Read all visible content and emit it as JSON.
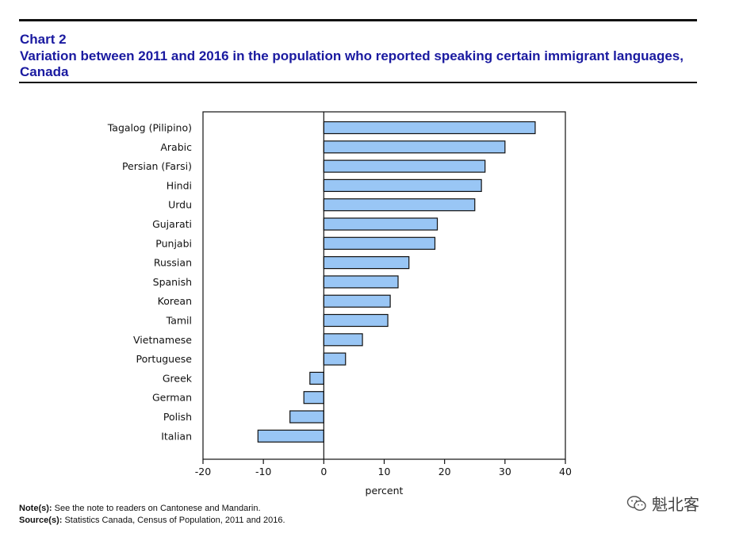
{
  "header": {
    "chart_number": "Chart 2",
    "title": "Variation between 2011 and 2016 in the population who reported speaking certain immigrant languages, Canada"
  },
  "chart_data": {
    "type": "bar",
    "orientation": "horizontal",
    "categories": [
      "Tagalog (Pilipino)",
      "Arabic",
      "Persian (Farsi)",
      "Hindi",
      "Urdu",
      "Gujarati",
      "Punjabi",
      "Russian",
      "Spanish",
      "Korean",
      "Tamil",
      "Vietnamese",
      "Portuguese",
      "Greek",
      "German",
      "Polish",
      "Italian"
    ],
    "values": [
      35.0,
      30.0,
      26.7,
      26.1,
      25.0,
      18.8,
      18.4,
      14.1,
      12.3,
      11.0,
      10.6,
      6.4,
      3.6,
      -2.3,
      -3.3,
      -5.6,
      -10.9
    ],
    "xlim": [
      -20,
      40
    ],
    "xticks": [
      -20,
      -10,
      0,
      10,
      20,
      30,
      40
    ],
    "xlabel": "percent",
    "ylabel": "",
    "bar_color": "#99c6f5",
    "bar_edge_color": "#111111"
  },
  "footer": {
    "note_label": "Note(s):",
    "note_text": "See the note to readers on Cantonese and Mandarin.",
    "source_label": "Source(s):",
    "source_text": "Statistics Canada, Census of Population, 2011 and 2016."
  },
  "watermark": {
    "text": "魁北客",
    "icon": "wechat-icon"
  }
}
